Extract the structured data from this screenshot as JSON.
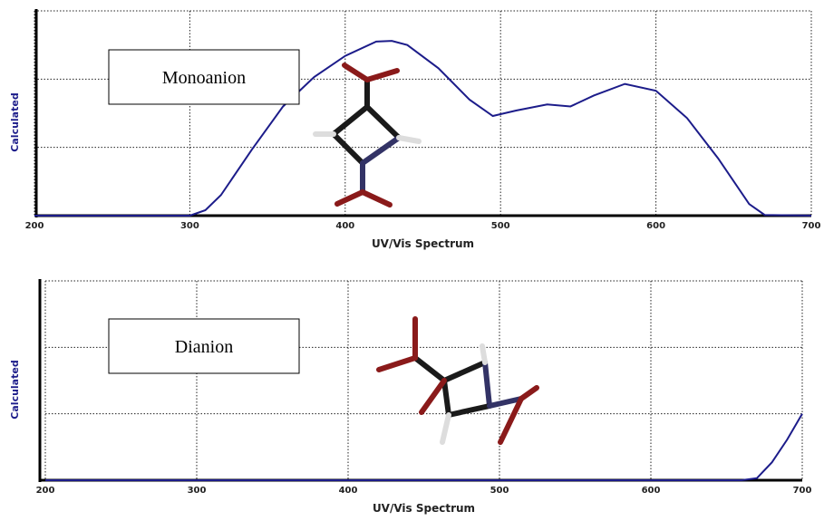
{
  "chart_data": [
    {
      "type": "line",
      "annotation": "Monoanion",
      "x_label": "UV/Vis Spectrum",
      "y_label": "Calculated",
      "xlim": [
        200,
        700
      ],
      "xticks": [
        200,
        300,
        400,
        500,
        600,
        700
      ],
      "ylim": [
        0,
        3
      ],
      "y_gridlines": [
        1,
        2,
        3
      ],
      "grid": true,
      "series": [
        {
          "color": "#1c1c8a",
          "x": [
            200,
            250,
            300,
            310,
            320,
            340,
            360,
            380,
            400,
            420,
            430,
            440,
            460,
            480,
            495,
            510,
            530,
            545,
            560,
            580,
            600,
            620,
            640,
            660,
            670,
            700
          ],
          "values": [
            0,
            0,
            0,
            0.08,
            0.3,
            0.97,
            1.6,
            2.03,
            2.34,
            2.55,
            2.56,
            2.5,
            2.16,
            1.7,
            1.46,
            1.54,
            1.63,
            1.6,
            1.76,
            1.93,
            1.83,
            1.43,
            0.84,
            0.17,
            0.01,
            0
          ]
        }
      ]
    },
    {
      "type": "line",
      "annotation": "Dianion",
      "x_label": "UV/Vis Spectrum",
      "y_label": "Calculated",
      "xlim": [
        200,
        700
      ],
      "xticks": [
        200,
        300,
        400,
        500,
        600,
        700
      ],
      "ylim": [
        0,
        3
      ],
      "y_gridlines": [
        1,
        2,
        3
      ],
      "grid": true,
      "series": [
        {
          "color": "#1c1c8a",
          "x": [
            200,
            300,
            400,
            500,
            600,
            660,
            670,
            680,
            690,
            700
          ],
          "values": [
            0,
            0,
            0,
            0,
            0,
            0,
            0.03,
            0.27,
            0.61,
            1.0
          ]
        }
      ]
    }
  ]
}
